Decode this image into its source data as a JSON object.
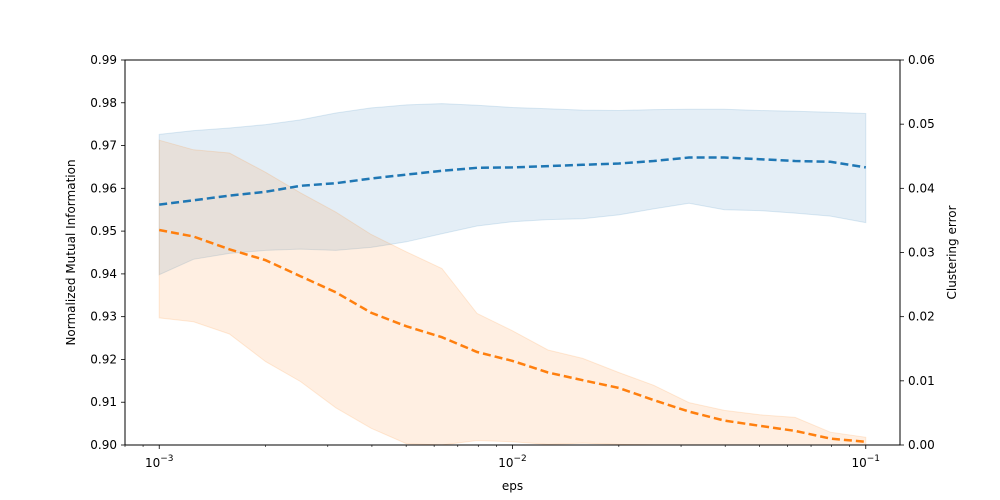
{
  "chart_data": {
    "type": "line",
    "title": "",
    "xlabel": "eps",
    "x_scale": "log",
    "xlim": [
      0.0008,
      0.125
    ],
    "x_ticks": [
      {
        "value": 0.001,
        "base": "10",
        "exp": "−3"
      },
      {
        "value": 0.01,
        "base": "10",
        "exp": "−2"
      },
      {
        "value": 0.1,
        "base": "10",
        "exp": "−1"
      }
    ],
    "y_left": {
      "label": "Normalized Mutual Information",
      "lim": [
        0.9,
        0.99
      ],
      "ticks": [
        "0.90",
        "0.91",
        "0.92",
        "0.93",
        "0.94",
        "0.95",
        "0.96",
        "0.97",
        "0.98",
        "0.99"
      ]
    },
    "y_right": {
      "label": "Clustering error",
      "lim": [
        0.0,
        0.06
      ],
      "ticks": [
        "0.00",
        "0.01",
        "0.02",
        "0.03",
        "0.04",
        "0.05",
        "0.06"
      ]
    },
    "grid": false,
    "legend": "none",
    "series": [
      {
        "axis": "left",
        "color": "#1f77b4",
        "line_style": "dashed",
        "x": [
          0.001,
          0.00125,
          0.00158,
          0.002,
          0.00251,
          0.00316,
          0.00398,
          0.00501,
          0.00631,
          0.00794,
          0.01,
          0.0126,
          0.0158,
          0.02,
          0.0251,
          0.0316,
          0.0398,
          0.0501,
          0.0631,
          0.0794,
          0.1
        ],
        "y": [
          0.9562,
          0.9572,
          0.9583,
          0.9592,
          0.9606,
          0.9612,
          0.9623,
          0.9632,
          0.9641,
          0.9648,
          0.9649,
          0.9652,
          0.9655,
          0.9658,
          0.9664,
          0.9672,
          0.9672,
          0.9668,
          0.9664,
          0.9662,
          0.9649
        ],
        "lower": [
          0.9398,
          0.9434,
          0.9448,
          0.9455,
          0.9458,
          0.9455,
          0.9462,
          0.9475,
          0.9494,
          0.9512,
          0.9522,
          0.9527,
          0.9529,
          0.9538,
          0.9552,
          0.9565,
          0.955,
          0.9548,
          0.9542,
          0.9535,
          0.952
        ],
        "upper": [
          0.9726,
          0.9735,
          0.9741,
          0.9749,
          0.976,
          0.9776,
          0.9788,
          0.9795,
          0.9798,
          0.9794,
          0.9789,
          0.9786,
          0.9783,
          0.9782,
          0.9784,
          0.9785,
          0.9785,
          0.9782,
          0.978,
          0.9778,
          0.9775
        ]
      },
      {
        "axis": "right",
        "color": "#ff7f0e",
        "line_style": "dashed",
        "x": [
          0.001,
          0.00125,
          0.00158,
          0.002,
          0.00251,
          0.00316,
          0.00398,
          0.00501,
          0.00631,
          0.00794,
          0.01,
          0.0126,
          0.0158,
          0.02,
          0.0251,
          0.0316,
          0.0398,
          0.0501,
          0.0631,
          0.0794,
          0.1
        ],
        "y": [
          0.0335,
          0.0325,
          0.0305,
          0.0288,
          0.0263,
          0.0238,
          0.0206,
          0.0185,
          0.0168,
          0.0145,
          0.0131,
          0.0113,
          0.0101,
          0.0089,
          0.007,
          0.0052,
          0.0038,
          0.003,
          0.0022,
          0.001,
          0.0005
        ],
        "lower": [
          0.0198,
          0.0192,
          0.0173,
          0.013,
          0.0099,
          0.0058,
          0.0026,
          0.0002,
          0.0,
          0.0007,
          0.0005,
          0.0001,
          0.0003,
          0.0001,
          0.0,
          0.0,
          0.0,
          0.0,
          0.0,
          0.0,
          0.0
        ],
        "upper": [
          0.0475,
          0.046,
          0.0455,
          0.0425,
          0.0393,
          0.0363,
          0.0328,
          0.0301,
          0.0275,
          0.0205,
          0.0178,
          0.0148,
          0.0135,
          0.0113,
          0.0093,
          0.0066,
          0.0054,
          0.0047,
          0.0043,
          0.002,
          0.0012
        ]
      }
    ]
  }
}
